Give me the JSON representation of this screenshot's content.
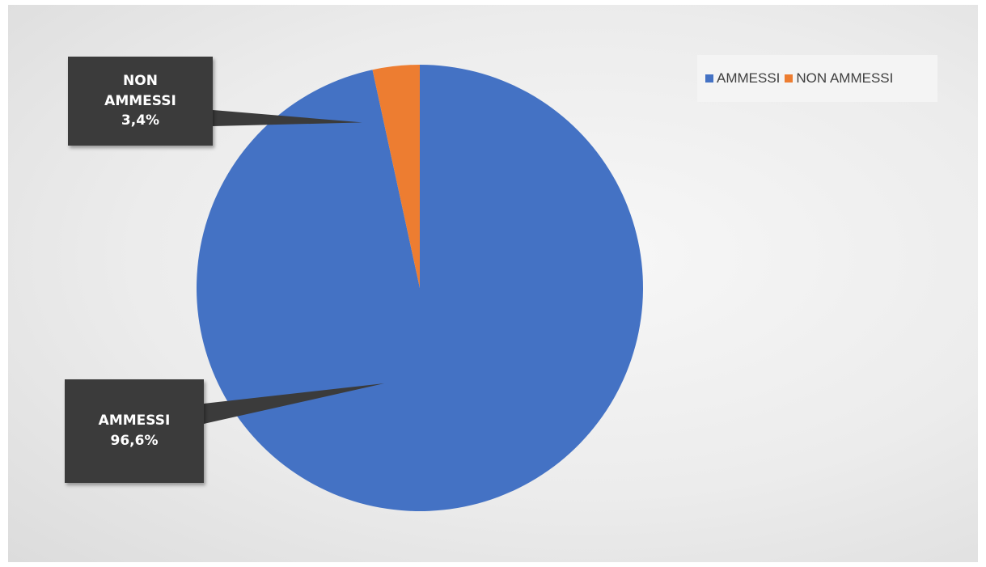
{
  "chart_data": {
    "type": "pie",
    "title": "",
    "slices": [
      {
        "name": "AMMESSI",
        "value": 96.6,
        "label_name": "AMMESSI",
        "label_value": "96,6%",
        "color": "#4472C4"
      },
      {
        "name": "NON AMMESSI",
        "value": 3.4,
        "label_name_lines": [
          "NON",
          "AMMESSI"
        ],
        "label_value": "3,4%",
        "color": "#ED7D31"
      }
    ],
    "legend": {
      "placement": "top-right",
      "entries": [
        "AMMESSI",
        "NON AMMESSI"
      ]
    }
  },
  "colors": {
    "callout_background": "#3b3b3b",
    "callout_text": "#ffffff"
  }
}
